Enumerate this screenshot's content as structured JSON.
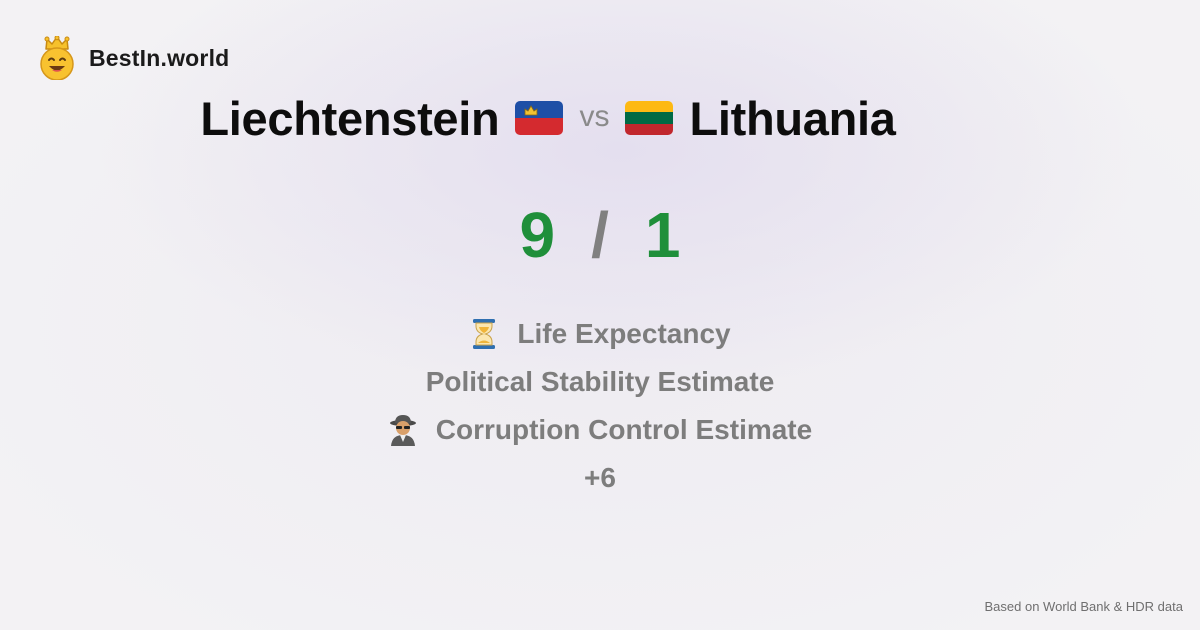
{
  "brand": {
    "name": "BestIn.world",
    "logo_icon": "crowned-smiley-icon"
  },
  "matchup": {
    "left_country": "Liechtenstein",
    "left_flag_icon": "liechtenstein-flag-icon",
    "vs_label": "vs",
    "right_country": "Lithuania",
    "right_flag_icon": "lithuania-flag-icon"
  },
  "score": {
    "left": "9",
    "separator": "/",
    "right": "1",
    "win_color": "#1f8f3a"
  },
  "metrics": [
    {
      "label": "Life Expectancy",
      "icon": "hourglass-icon"
    },
    {
      "label": "Political Stability Estimate",
      "icon": ""
    },
    {
      "label": "Corruption Control Estimate",
      "icon": "detective-icon"
    }
  ],
  "more_label": "+6",
  "source_note": "Based on World Bank & HDR data"
}
